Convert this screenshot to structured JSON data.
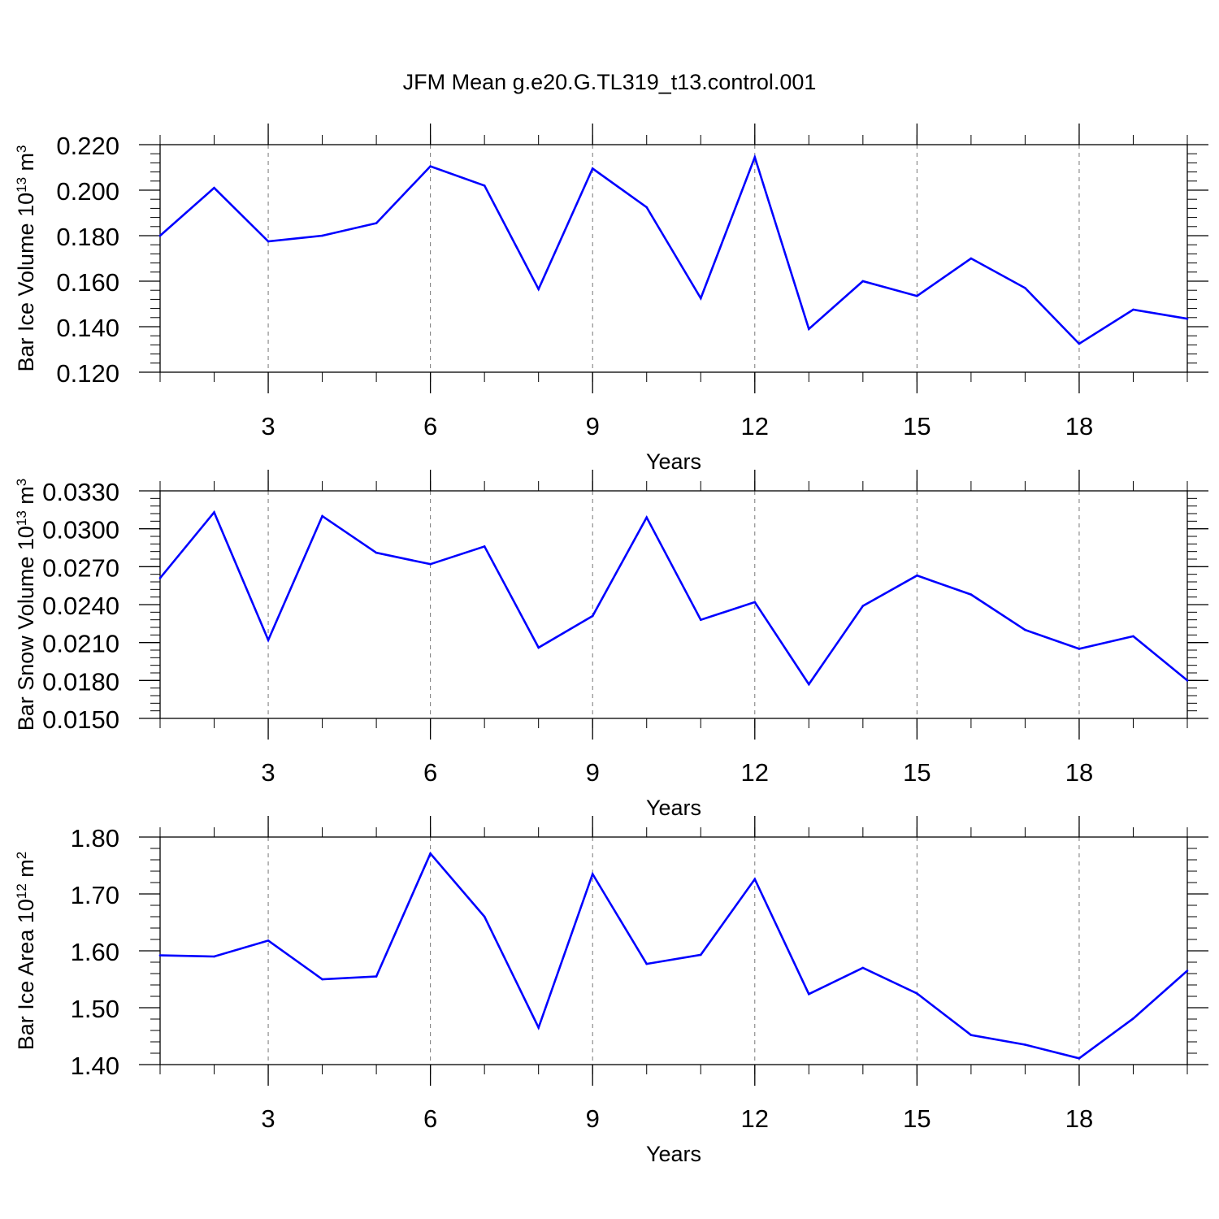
{
  "title": "JFM Mean g.e20.G.TL319_t13.control.001",
  "colors": {
    "series": "#0000ff",
    "axis": "#000000",
    "grid": "#777777"
  },
  "chart_data": [
    {
      "type": "line",
      "title": "JFM Mean g.e20.G.TL319_t13.control.001",
      "xlabel": "Years",
      "ylabel_main": "Bar Ice Volume 10",
      "ylabel_exp": "13",
      "ylabel_unit": " m",
      "ylabel_unit_exp": "3",
      "xlim": [
        1,
        20
      ],
      "ylim": [
        0.12,
        0.22
      ],
      "xticks": [
        3,
        6,
        9,
        12,
        15,
        18
      ],
      "yticks": [
        0.12,
        0.14,
        0.16,
        0.18,
        0.2,
        0.22
      ],
      "ytick_labels": [
        "0.120",
        "0.140",
        "0.160",
        "0.180",
        "0.200",
        "0.220"
      ],
      "x_minor_step": 1,
      "y_minor_step": 0.004,
      "grid": "vertical dashed at major x ticks",
      "x": [
        1,
        2,
        3,
        4,
        5,
        6,
        7,
        8,
        9,
        10,
        11,
        12,
        13,
        14,
        15,
        16,
        17,
        18,
        19,
        20
      ],
      "series": [
        {
          "values": [
            0.18,
            0.201,
            0.1775,
            0.18,
            0.1855,
            0.2105,
            0.202,
            0.1565,
            0.2095,
            0.1925,
            0.1525,
            0.2145,
            0.139,
            0.16,
            0.1535,
            0.17,
            0.157,
            0.1325,
            0.1475,
            0.1435
          ]
        }
      ]
    },
    {
      "type": "line",
      "xlabel": "Years",
      "ylabel_main": "Bar Snow Volume 10",
      "ylabel_exp": "13",
      "ylabel_unit": " m",
      "ylabel_unit_exp": "3",
      "xlim": [
        1,
        20
      ],
      "ylim": [
        0.015,
        0.033
      ],
      "xticks": [
        3,
        6,
        9,
        12,
        15,
        18
      ],
      "yticks": [
        0.015,
        0.018,
        0.021,
        0.024,
        0.027,
        0.03,
        0.033
      ],
      "ytick_labels": [
        "0.0150",
        "0.0180",
        "0.0210",
        "0.0240",
        "0.0270",
        "0.0300",
        "0.0330"
      ],
      "x_minor_step": 1,
      "y_minor_step": 0.0006,
      "grid": "vertical dashed at major x ticks",
      "x": [
        1,
        2,
        3,
        4,
        5,
        6,
        7,
        8,
        9,
        10,
        11,
        12,
        13,
        14,
        15,
        16,
        17,
        18,
        19,
        20
      ],
      "series": [
        {
          "values": [
            0.0261,
            0.0313,
            0.0212,
            0.031,
            0.0281,
            0.0272,
            0.0286,
            0.0206,
            0.0231,
            0.0309,
            0.0228,
            0.0242,
            0.0177,
            0.0239,
            0.0263,
            0.0248,
            0.022,
            0.0205,
            0.0215,
            0.018
          ]
        }
      ]
    },
    {
      "type": "line",
      "xlabel": "Years",
      "ylabel_main": "Bar Ice Area 10",
      "ylabel_exp": "12",
      "ylabel_unit": " m",
      "ylabel_unit_exp": "2",
      "xlim": [
        1,
        20
      ],
      "ylim": [
        1.4,
        1.8
      ],
      "xticks": [
        3,
        6,
        9,
        12,
        15,
        18
      ],
      "yticks": [
        1.4,
        1.5,
        1.6,
        1.7,
        1.8
      ],
      "ytick_labels": [
        "1.40",
        "1.50",
        "1.60",
        "1.70",
        "1.80"
      ],
      "x_minor_step": 1,
      "y_minor_step": 0.02,
      "grid": "vertical dashed at major x ticks",
      "x": [
        1,
        2,
        3,
        4,
        5,
        6,
        7,
        8,
        9,
        10,
        11,
        12,
        13,
        14,
        15,
        16,
        17,
        18,
        19,
        20
      ],
      "series": [
        {
          "values": [
            1.592,
            1.59,
            1.618,
            1.55,
            1.555,
            1.771,
            1.66,
            1.465,
            1.735,
            1.577,
            1.593,
            1.726,
            1.524,
            1.57,
            1.525,
            1.452,
            1.435,
            1.411,
            1.481,
            1.565
          ]
        }
      ]
    }
  ]
}
